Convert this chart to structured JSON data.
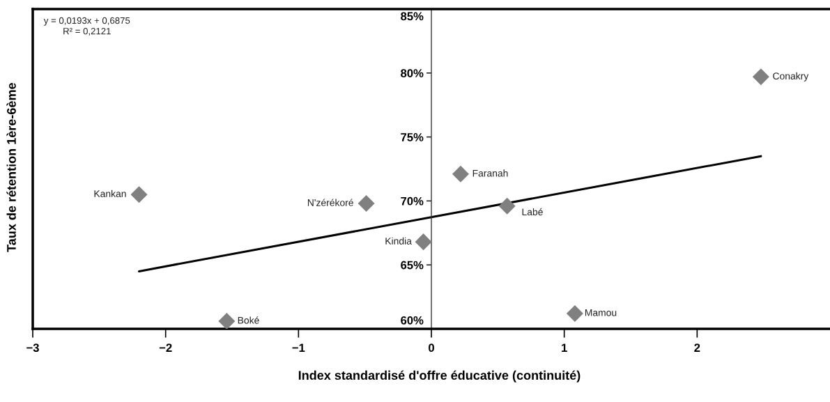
{
  "chart_data": {
    "type": "scatter",
    "xlabel": "Index standardisé d'offre éducative (continuité)",
    "ylabel": "Taux de rétention 1ère-6ème",
    "xlim": [
      -3,
      3
    ],
    "ylim": [
      0.6,
      0.85
    ],
    "xticks": [
      {
        "value": -3,
        "label": "−3"
      },
      {
        "value": -2,
        "label": "−2"
      },
      {
        "value": -1,
        "label": "−1"
      },
      0,
      1,
      2
    ],
    "yticks": [
      {
        "value": 0.6,
        "label": "60%"
      },
      {
        "value": 0.65,
        "label": "65%"
      },
      {
        "value": 0.7,
        "label": "70%"
      },
      {
        "value": 0.75,
        "label": "75%"
      },
      {
        "value": 0.8,
        "label": "80%"
      },
      {
        "value": 0.85,
        "label": "85%"
      }
    ],
    "marker": "diamond",
    "grid": false,
    "series": [
      {
        "color": "#808080",
        "x": [
          -2.2,
          -1.54,
          -0.49,
          -0.06,
          0.22,
          0.57,
          1.08,
          2.48
        ],
        "values": [
          0.705,
          0.606,
          0.698,
          0.668,
          0.721,
          0.696,
          0.612,
          0.797
        ]
      },
      {
        "type": "line",
        "color": "#000000",
        "marker": "none",
        "line_style": "solid",
        "x": [
          -2.2,
          2.48
        ],
        "values": [
          0.645,
          0.735
        ]
      }
    ],
    "annotations": [
      "y = 0,0193x + 0,6875\nR² = 0,2121",
      {
        "text": "Kankan",
        "x": -2.2,
        "y": 0.705
      },
      {
        "text": "Boké",
        "x": -1.54,
        "y": 0.606
      },
      {
        "text": "N'zérékoré",
        "x": -0.49,
        "y": 0.698
      },
      {
        "text": "Kindia",
        "x": -0.06,
        "y": 0.668
      },
      {
        "text": "Faranah",
        "x": 0.22,
        "y": 0.721
      },
      {
        "text": "Labé",
        "x": 0.57,
        "y": 0.696
      },
      {
        "text": "Mamou",
        "x": 1.08,
        "y": 0.612
      },
      {
        "text": "Conakry",
        "x": 2.48,
        "y": 0.797
      }
    ]
  }
}
